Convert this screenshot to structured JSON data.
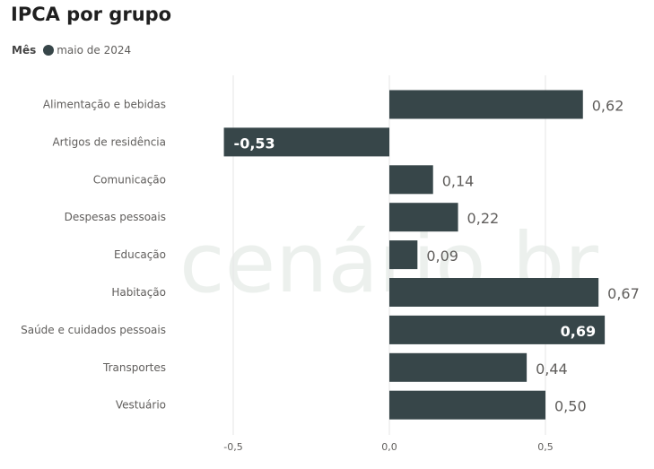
{
  "colors": {
    "bar": "#374649",
    "grid": "#e6e6e6",
    "label_outside": "#605e5c",
    "label_inside": "#ffffff",
    "watermark": "#e4ebe6"
  },
  "legend": {
    "title": "Mês",
    "entries": [
      "maio de 2024"
    ]
  },
  "watermark": {
    "text": "cenário br"
  },
  "chart_data": {
    "type": "bar",
    "orientation": "horizontal",
    "title": "IPCA por grupo",
    "xlabel": "",
    "ylabel": "",
    "categories": [
      "Alimentação e bebidas",
      "Artigos de residência",
      "Comunicação",
      "Despesas pessoais",
      "Educação",
      "Habitação",
      "Saúde e cuidados pessoais",
      "Transportes",
      "Vestuário"
    ],
    "series": [
      {
        "name": "maio de 2024",
        "values": [
          0.62,
          -0.53,
          0.14,
          0.22,
          0.09,
          0.67,
          0.69,
          0.44,
          0.5
        ]
      }
    ],
    "data_labels": [
      "0,62",
      "-0,53",
      "0,14",
      "0,22",
      "0,09",
      "0,67",
      "0,69",
      "0,44",
      "0,50"
    ],
    "label_inside": [
      false,
      true,
      false,
      false,
      false,
      false,
      true,
      false,
      false
    ],
    "xlim": [
      -0.53,
      0.69
    ],
    "xticks": [
      -0.5,
      0.0,
      0.5
    ],
    "xtick_labels": [
      "-0,5",
      "0,0",
      "0,5"
    ],
    "grid": true,
    "legend_position": "top-left"
  }
}
